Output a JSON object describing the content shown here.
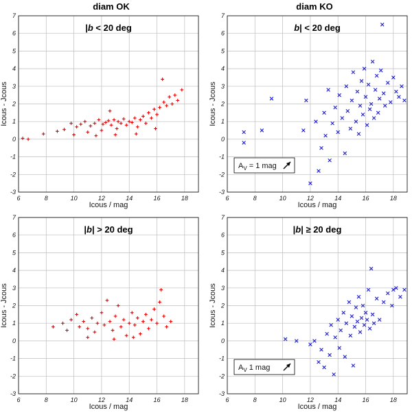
{
  "columns": {
    "left_title": "diam OK",
    "right_title": "diam KO"
  },
  "chart_data": [
    {
      "type": "scatter",
      "column": "diam OK",
      "title_prefix": "|",
      "title_b": "b",
      "title_suffix": "  < 20 deg",
      "xlabel": "Icous / mag",
      "ylabel": "Icous - Jcous",
      "xlim": [
        6,
        19
      ],
      "ylim": [
        -3,
        7
      ],
      "xticks": [
        6,
        8,
        10,
        12,
        14,
        16,
        18
      ],
      "yticks": [
        -3,
        -2,
        -1,
        0,
        1,
        2,
        3,
        4,
        5,
        6,
        7
      ],
      "grid": true,
      "series": [
        {
          "color": "#e00000",
          "marker": "plus",
          "points": [
            [
              6.3,
              0.05
            ],
            [
              6.7,
              0.0
            ],
            [
              7.8,
              0.3
            ],
            [
              8.8,
              0.45
            ],
            [
              9.3,
              0.55
            ],
            [
              9.8,
              0.9
            ],
            [
              10.2,
              0.7
            ],
            [
              10.5,
              0.85
            ],
            [
              10.8,
              1.0
            ],
            [
              11.0,
              0.4
            ],
            [
              11.2,
              0.75
            ],
            [
              11.5,
              0.9
            ],
            [
              11.8,
              1.1
            ],
            [
              12.0,
              0.5
            ],
            [
              12.1,
              0.85
            ],
            [
              12.3,
              0.95
            ],
            [
              12.5,
              1.05
            ],
            [
              12.7,
              0.8
            ],
            [
              12.9,
              1.1
            ],
            [
              13.1,
              0.6
            ],
            [
              13.2,
              1.0
            ],
            [
              13.4,
              0.9
            ],
            [
              13.6,
              1.15
            ],
            [
              13.8,
              0.8
            ],
            [
              14.0,
              1.0
            ],
            [
              14.2,
              0.95
            ],
            [
              14.4,
              1.2
            ],
            [
              14.6,
              0.7
            ],
            [
              14.8,
              1.1
            ],
            [
              15.0,
              1.3
            ],
            [
              15.2,
              0.9
            ],
            [
              15.4,
              1.5
            ],
            [
              15.6,
              1.2
            ],
            [
              15.8,
              1.7
            ],
            [
              16.0,
              1.4
            ],
            [
              16.2,
              1.8
            ],
            [
              16.4,
              3.4
            ],
            [
              16.5,
              2.1
            ],
            [
              16.7,
              1.9
            ],
            [
              16.9,
              2.4
            ],
            [
              17.1,
              2.0
            ],
            [
              17.3,
              2.5
            ],
            [
              17.5,
              2.2
            ],
            [
              17.8,
              2.8
            ],
            [
              14.5,
              0.3
            ],
            [
              13.0,
              0.25
            ],
            [
              12.6,
              1.6
            ],
            [
              15.9,
              0.6
            ],
            [
              10.0,
              0.25
            ],
            [
              11.6,
              0.2
            ]
          ]
        }
      ]
    },
    {
      "type": "scatter",
      "column": "diam KO",
      "title_prefix": "",
      "title_b": "b",
      "title_suffix": "| < 20 deg",
      "xlabel": "Icous / mag",
      "ylabel": "Icous - Jcous",
      "xlim": [
        6,
        19
      ],
      "ylim": [
        -3,
        7
      ],
      "xticks": [
        6,
        8,
        10,
        12,
        14,
        16,
        18
      ],
      "yticks": [
        -3,
        -2,
        -1,
        0,
        1,
        2,
        3,
        4,
        5,
        6,
        7
      ],
      "grid": true,
      "legend": {
        "prefix": "A",
        "sub": "V",
        "text": " = 1 mag"
      },
      "series": [
        {
          "color": "#1a1adc",
          "marker": "x",
          "points": [
            [
              7.2,
              0.4
            ],
            [
              7.2,
              -0.2
            ],
            [
              8.5,
              0.5
            ],
            [
              9.2,
              2.3
            ],
            [
              11.5,
              0.5
            ],
            [
              11.7,
              2.2
            ],
            [
              12.0,
              -2.5
            ],
            [
              12.4,
              1.0
            ],
            [
              12.6,
              -1.8
            ],
            [
              12.8,
              -0.5
            ],
            [
              13.0,
              1.5
            ],
            [
              13.1,
              0.2
            ],
            [
              13.3,
              2.8
            ],
            [
              13.4,
              -1.2
            ],
            [
              13.6,
              0.9
            ],
            [
              13.8,
              1.8
            ],
            [
              14.0,
              0.4
            ],
            [
              14.1,
              2.5
            ],
            [
              14.3,
              1.2
            ],
            [
              14.5,
              -0.8
            ],
            [
              14.6,
              3.0
            ],
            [
              14.7,
              1.6
            ],
            [
              14.9,
              0.6
            ],
            [
              15.0,
              2.2
            ],
            [
              15.1,
              3.8
            ],
            [
              15.3,
              1.0
            ],
            [
              15.4,
              2.7
            ],
            [
              15.5,
              0.3
            ],
            [
              15.6,
              1.9
            ],
            [
              15.7,
              3.3
            ],
            [
              15.8,
              1.4
            ],
            [
              15.9,
              4.0
            ],
            [
              16.0,
              2.4
            ],
            [
              16.1,
              0.8
            ],
            [
              16.2,
              3.1
            ],
            [
              16.3,
              1.7
            ],
            [
              16.4,
              2.0
            ],
            [
              16.5,
              4.4
            ],
            [
              16.6,
              1.2
            ],
            [
              16.7,
              2.8
            ],
            [
              16.8,
              3.6
            ],
            [
              16.9,
              1.5
            ],
            [
              17.0,
              2.3
            ],
            [
              17.1,
              3.9
            ],
            [
              17.2,
              6.5
            ],
            [
              17.3,
              2.6
            ],
            [
              17.4,
              1.9
            ],
            [
              17.6,
              3.2
            ],
            [
              17.8,
              2.1
            ],
            [
              18.0,
              3.5
            ],
            [
              18.2,
              2.7
            ],
            [
              18.4,
              2.4
            ],
            [
              18.6,
              3.0
            ],
            [
              18.8,
              2.2
            ]
          ]
        }
      ]
    },
    {
      "type": "scatter",
      "column": "diam OK",
      "title_prefix": "|",
      "title_b": "b",
      "title_suffix": "| > 20 deg",
      "xlabel": "Icous / mag",
      "ylabel": "Icous - Jcous",
      "xlim": [
        6,
        19
      ],
      "ylim": [
        -3,
        7
      ],
      "xticks": [
        6,
        8,
        10,
        12,
        14,
        16,
        18
      ],
      "yticks": [
        -3,
        -2,
        -1,
        0,
        1,
        2,
        3,
        4,
        5,
        6,
        7
      ],
      "grid": true,
      "series": [
        {
          "color": "#e00000",
          "marker": "plus",
          "points": [
            [
              8.5,
              0.8
            ],
            [
              9.2,
              1.0
            ],
            [
              9.5,
              0.6
            ],
            [
              9.8,
              1.2
            ],
            [
              10.2,
              1.5
            ],
            [
              10.4,
              0.8
            ],
            [
              10.7,
              1.1
            ],
            [
              11.0,
              0.7
            ],
            [
              11.3,
              1.3
            ],
            [
              11.5,
              0.5
            ],
            [
              11.7,
              1.0
            ],
            [
              12.0,
              1.6
            ],
            [
              12.2,
              0.9
            ],
            [
              12.4,
              2.3
            ],
            [
              12.6,
              1.1
            ],
            [
              12.8,
              0.6
            ],
            [
              13.0,
              1.4
            ],
            [
              13.2,
              2.0
            ],
            [
              13.4,
              0.8
            ],
            [
              13.6,
              1.2
            ],
            [
              13.8,
              0.3
            ],
            [
              14.0,
              1.0
            ],
            [
              14.2,
              1.6
            ],
            [
              14.4,
              0.9
            ],
            [
              14.6,
              1.3
            ],
            [
              14.8,
              0.4
            ],
            [
              15.0,
              1.1
            ],
            [
              15.2,
              1.5
            ],
            [
              15.4,
              0.7
            ],
            [
              15.6,
              1.2
            ],
            [
              15.8,
              1.8
            ],
            [
              16.0,
              1.0
            ],
            [
              16.2,
              2.2
            ],
            [
              16.3,
              2.9
            ],
            [
              16.5,
              1.4
            ],
            [
              16.7,
              0.8
            ],
            [
              17.0,
              1.1
            ],
            [
              11.0,
              0.2
            ],
            [
              12.9,
              0.1
            ],
            [
              14.3,
              0.2
            ]
          ]
        }
      ]
    },
    {
      "type": "scatter",
      "column": "diam KO",
      "title_prefix": "|",
      "title_b": "b",
      "title_suffix": "| ≥ 20 deg",
      "xlabel": "Icous / mag",
      "ylabel": "Icous - Jcous",
      "xlim": [
        6,
        19
      ],
      "ylim": [
        -3,
        7
      ],
      "xticks": [
        6,
        8,
        10,
        12,
        14,
        16,
        18
      ],
      "yticks": [
        -3,
        -2,
        -1,
        0,
        1,
        2,
        3,
        4,
        5,
        6,
        7
      ],
      "grid": true,
      "legend": {
        "prefix": "A",
        "sub": "V",
        "text": "  1 mag"
      },
      "series": [
        {
          "color": "#1a1adc",
          "marker": "x",
          "points": [
            [
              10.2,
              0.1
            ],
            [
              11.0,
              0.0
            ],
            [
              12.0,
              -0.2
            ],
            [
              12.3,
              0.0
            ],
            [
              12.6,
              -1.2
            ],
            [
              12.8,
              -0.5
            ],
            [
              13.0,
              -1.5
            ],
            [
              13.2,
              0.4
            ],
            [
              13.4,
              -0.8
            ],
            [
              13.5,
              0.9
            ],
            [
              13.7,
              -1.9
            ],
            [
              13.8,
              0.2
            ],
            [
              14.0,
              1.2
            ],
            [
              14.1,
              -0.4
            ],
            [
              14.2,
              0.6
            ],
            [
              14.4,
              1.6
            ],
            [
              14.5,
              -0.9
            ],
            [
              14.6,
              1.0
            ],
            [
              14.8,
              2.2
            ],
            [
              14.9,
              0.3
            ],
            [
              15.0,
              1.4
            ],
            [
              15.1,
              -1.4
            ],
            [
              15.2,
              0.8
            ],
            [
              15.3,
              1.9
            ],
            [
              15.4,
              1.1
            ],
            [
              15.5,
              2.5
            ],
            [
              15.6,
              0.5
            ],
            [
              15.7,
              1.3
            ],
            [
              15.8,
              2.0
            ],
            [
              15.9,
              0.9
            ],
            [
              16.0,
              1.6
            ],
            [
              16.1,
              1.2
            ],
            [
              16.2,
              2.9
            ],
            [
              16.3,
              0.7
            ],
            [
              16.4,
              4.1
            ],
            [
              16.5,
              1.5
            ],
            [
              16.6,
              1.0
            ],
            [
              16.8,
              2.4
            ],
            [
              17.0,
              1.2
            ],
            [
              17.3,
              2.2
            ],
            [
              17.6,
              2.7
            ],
            [
              17.9,
              2.0
            ],
            [
              18.0,
              2.9
            ],
            [
              18.2,
              3.0
            ],
            [
              18.5,
              2.5
            ],
            [
              18.8,
              2.9
            ]
          ]
        }
      ]
    }
  ]
}
